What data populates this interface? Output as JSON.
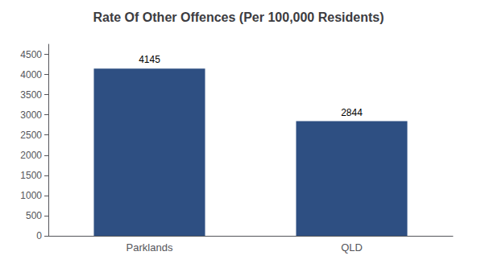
{
  "chart_data": {
    "type": "bar",
    "title": "Rate Of Other Offences (Per 100,000 Residents)",
    "categories": [
      "Parklands",
      "QLD"
    ],
    "values": [
      4145,
      2844
    ],
    "color": "#2e4f82",
    "ylim": [
      0,
      4750
    ],
    "yticks": [
      0,
      500,
      1000,
      1500,
      2000,
      2500,
      3000,
      3500,
      4000,
      4500
    ],
    "grid": false,
    "data_labels": true
  }
}
